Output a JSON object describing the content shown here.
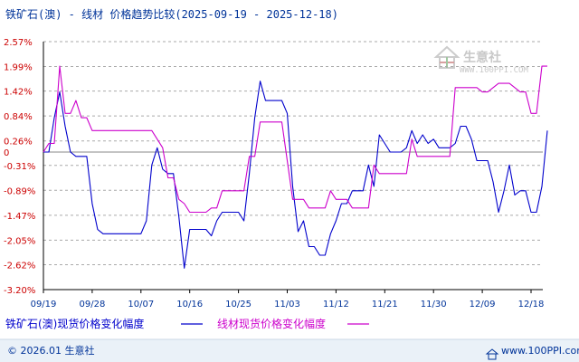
{
  "title": "铁矿石(澳) - 线材 价格趋势比较(2025-09-19 - 2025-12-18)",
  "watermark": {
    "name": "生意社",
    "url": "WWW.100PPI.COM"
  },
  "footer": {
    "copyright": "© 2026.01 生意社",
    "site": "www.100PPI.com"
  },
  "colors": {
    "series_iron": "#0000cc",
    "series_wire": "#cc00cc",
    "axis": "#000000",
    "grid": "#999999",
    "ytick": "#cc0000",
    "xtick": "#003399",
    "footer_bg": "#eaf1f8"
  },
  "chart_data": {
    "type": "line",
    "title": "铁矿石(澳) - 线材 价格趋势比较(2025-09-19 - 2025-12-18)",
    "y_unit": "%",
    "ylim": [
      -3.2,
      2.57
    ],
    "y_ticks": [
      "2.57%",
      "1.99%",
      "1.42%",
      "0.84%",
      "0.26%",
      "0",
      "-0.31%",
      "-0.89%",
      "-1.47%",
      "-2.05%",
      "-2.62%",
      "-3.20%"
    ],
    "y_tick_values": [
      2.57,
      1.99,
      1.42,
      0.84,
      0.26,
      0,
      -0.31,
      -0.89,
      -1.47,
      -2.05,
      -2.62,
      -3.2
    ],
    "x_ticks": [
      "09/19",
      "09/28",
      "10/07",
      "10/16",
      "10/25",
      "11/03",
      "11/12",
      "11/21",
      "11/30",
      "12/09",
      "12/18"
    ],
    "x_tick_days": [
      0,
      9,
      18,
      27,
      36,
      45,
      54,
      63,
      72,
      81,
      90
    ],
    "grid": "horizontal-dashed",
    "legend_position": "bottom",
    "series": [
      {
        "name": "铁矿石(澳)现货价格变化幅度",
        "color": "#0000cc",
        "points": [
          [
            0,
            0.0
          ],
          [
            1,
            0.0
          ],
          [
            2,
            0.8
          ],
          [
            3,
            1.4
          ],
          [
            4,
            0.6
          ],
          [
            5,
            0.0
          ],
          [
            6,
            -0.1
          ],
          [
            7,
            -0.1
          ],
          [
            8,
            -0.1
          ],
          [
            9,
            -1.2
          ],
          [
            10,
            -1.8
          ],
          [
            11,
            -1.9
          ],
          [
            12,
            -1.9
          ],
          [
            13,
            -1.9
          ],
          [
            14,
            -1.9
          ],
          [
            15,
            -1.9
          ],
          [
            16,
            -1.9
          ],
          [
            17,
            -1.9
          ],
          [
            18,
            -1.9
          ],
          [
            19,
            -1.6
          ],
          [
            20,
            -0.3
          ],
          [
            21,
            0.1
          ],
          [
            22,
            -0.4
          ],
          [
            23,
            -0.5
          ],
          [
            24,
            -0.5
          ],
          [
            25,
            -1.5
          ],
          [
            26,
            -2.7
          ],
          [
            27,
            -1.8
          ],
          [
            28,
            -1.8
          ],
          [
            29,
            -1.8
          ],
          [
            30,
            -1.8
          ],
          [
            31,
            -1.95
          ],
          [
            32,
            -1.6
          ],
          [
            33,
            -1.4
          ],
          [
            34,
            -1.4
          ],
          [
            35,
            -1.4
          ],
          [
            36,
            -1.4
          ],
          [
            37,
            -1.6
          ],
          [
            38,
            -0.5
          ],
          [
            39,
            0.8
          ],
          [
            40,
            1.65
          ],
          [
            41,
            1.2
          ],
          [
            42,
            1.2
          ],
          [
            43,
            1.2
          ],
          [
            44,
            1.2
          ],
          [
            45,
            0.9
          ],
          [
            46,
            -0.8
          ],
          [
            47,
            -1.85
          ],
          [
            48,
            -1.6
          ],
          [
            49,
            -2.2
          ],
          [
            50,
            -2.2
          ],
          [
            51,
            -2.4
          ],
          [
            52,
            -2.4
          ],
          [
            53,
            -1.9
          ],
          [
            54,
            -1.6
          ],
          [
            55,
            -1.2
          ],
          [
            56,
            -1.2
          ],
          [
            57,
            -0.9
          ],
          [
            58,
            -0.9
          ],
          [
            59,
            -0.9
          ],
          [
            60,
            -0.3
          ],
          [
            61,
            -0.8
          ],
          [
            62,
            0.4
          ],
          [
            63,
            0.2
          ],
          [
            64,
            0.0
          ],
          [
            65,
            0.0
          ],
          [
            66,
            0.0
          ],
          [
            67,
            0.1
          ],
          [
            68,
            0.5
          ],
          [
            69,
            0.2
          ],
          [
            70,
            0.4
          ],
          [
            71,
            0.2
          ],
          [
            72,
            0.3
          ],
          [
            73,
            0.1
          ],
          [
            74,
            0.1
          ],
          [
            75,
            0.1
          ],
          [
            76,
            0.2
          ],
          [
            77,
            0.6
          ],
          [
            78,
            0.6
          ],
          [
            79,
            0.3
          ],
          [
            80,
            -0.2
          ],
          [
            81,
            -0.2
          ],
          [
            82,
            -0.2
          ],
          [
            83,
            -0.7
          ],
          [
            84,
            -1.4
          ],
          [
            85,
            -0.9
          ],
          [
            86,
            -0.3
          ],
          [
            87,
            -1.0
          ],
          [
            88,
            -0.9
          ],
          [
            89,
            -0.9
          ],
          [
            90,
            -1.4
          ],
          [
            91,
            -1.4
          ],
          [
            92,
            -0.8
          ],
          [
            93,
            0.5
          ]
        ]
      },
      {
        "name": "线材现货价格变化幅度",
        "color": "#cc00cc",
        "points": [
          [
            0,
            0.0
          ],
          [
            1,
            0.2
          ],
          [
            2,
            0.2
          ],
          [
            3,
            2.0
          ],
          [
            4,
            0.9
          ],
          [
            5,
            0.9
          ],
          [
            6,
            1.2
          ],
          [
            7,
            0.8
          ],
          [
            8,
            0.8
          ],
          [
            9,
            0.5
          ],
          [
            10,
            0.5
          ],
          [
            11,
            0.5
          ],
          [
            12,
            0.5
          ],
          [
            13,
            0.5
          ],
          [
            14,
            0.5
          ],
          [
            15,
            0.5
          ],
          [
            16,
            0.5
          ],
          [
            17,
            0.5
          ],
          [
            18,
            0.5
          ],
          [
            19,
            0.5
          ],
          [
            20,
            0.5
          ],
          [
            21,
            0.3
          ],
          [
            22,
            0.1
          ],
          [
            23,
            -0.6
          ],
          [
            24,
            -0.6
          ],
          [
            25,
            -1.1
          ],
          [
            26,
            -1.2
          ],
          [
            27,
            -1.4
          ],
          [
            28,
            -1.4
          ],
          [
            29,
            -1.4
          ],
          [
            30,
            -1.4
          ],
          [
            31,
            -1.3
          ],
          [
            32,
            -1.3
          ],
          [
            33,
            -0.9
          ],
          [
            34,
            -0.9
          ],
          [
            35,
            -0.9
          ],
          [
            36,
            -0.9
          ],
          [
            37,
            -0.9
          ],
          [
            38,
            -0.1
          ],
          [
            39,
            -0.1
          ],
          [
            40,
            0.7
          ],
          [
            41,
            0.7
          ],
          [
            42,
            0.7
          ],
          [
            43,
            0.7
          ],
          [
            44,
            0.7
          ],
          [
            45,
            -0.2
          ],
          [
            46,
            -1.1
          ],
          [
            47,
            -1.1
          ],
          [
            48,
            -1.1
          ],
          [
            49,
            -1.3
          ],
          [
            50,
            -1.3
          ],
          [
            51,
            -1.3
          ],
          [
            52,
            -1.3
          ],
          [
            53,
            -0.9
          ],
          [
            54,
            -1.1
          ],
          [
            55,
            -1.1
          ],
          [
            56,
            -1.1
          ],
          [
            57,
            -1.3
          ],
          [
            58,
            -1.3
          ],
          [
            59,
            -1.3
          ],
          [
            60,
            -1.3
          ],
          [
            61,
            -0.3
          ],
          [
            62,
            -0.5
          ],
          [
            63,
            -0.5
          ],
          [
            64,
            -0.5
          ],
          [
            65,
            -0.5
          ],
          [
            66,
            -0.5
          ],
          [
            67,
            -0.5
          ],
          [
            68,
            0.3
          ],
          [
            69,
            -0.1
          ],
          [
            70,
            -0.1
          ],
          [
            71,
            -0.1
          ],
          [
            72,
            -0.1
          ],
          [
            73,
            -0.1
          ],
          [
            74,
            -0.1
          ],
          [
            75,
            -0.1
          ],
          [
            76,
            1.5
          ],
          [
            77,
            1.5
          ],
          [
            78,
            1.5
          ],
          [
            79,
            1.5
          ],
          [
            80,
            1.5
          ],
          [
            81,
            1.4
          ],
          [
            82,
            1.4
          ],
          [
            83,
            1.5
          ],
          [
            84,
            1.6
          ],
          [
            85,
            1.6
          ],
          [
            86,
            1.6
          ],
          [
            87,
            1.5
          ],
          [
            88,
            1.4
          ],
          [
            89,
            1.4
          ],
          [
            90,
            0.9
          ],
          [
            91,
            0.9
          ],
          [
            92,
            2.0
          ],
          [
            93,
            2.0
          ]
        ]
      }
    ]
  }
}
